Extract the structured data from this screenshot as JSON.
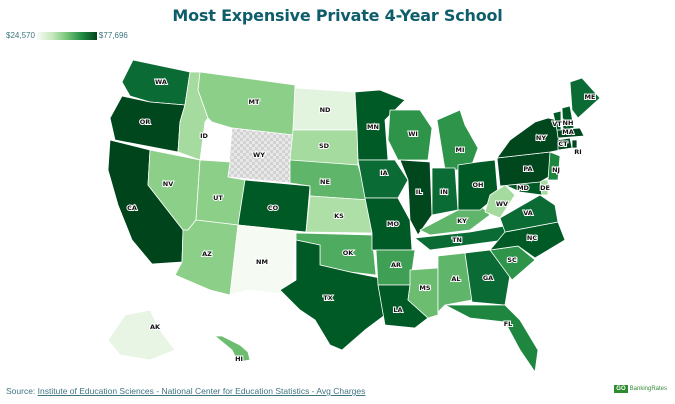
{
  "title": "Most Expensive Private 4-Year School",
  "legend": {
    "min_label": "$24,570",
    "max_label": "$77,696",
    "min_color": "#f7fcf5",
    "max_color": "#00441b"
  },
  "source": {
    "prefix": "Source: ",
    "link_text": "Institute of Education Sciences - National Center for Education Statistics - Avg Charges"
  },
  "brand": {
    "go": "GO",
    "name": "BankingRates"
  },
  "no_data_pattern": "checkered",
  "states": [
    {
      "abbr": "WA",
      "shade": "#0b6b34"
    },
    {
      "abbr": "OR",
      "shade": "#00471d"
    },
    {
      "abbr": "CA",
      "shade": "#00441b"
    },
    {
      "abbr": "ID",
      "shade": "#a6dba0"
    },
    {
      "abbr": "NV",
      "shade": "#8ccf88"
    },
    {
      "abbr": "MT",
      "shade": "#8ccf88"
    },
    {
      "abbr": "WY",
      "shade": "no-data"
    },
    {
      "abbr": "UT",
      "shade": "#8ccf88"
    },
    {
      "abbr": "AZ",
      "shade": "#8ccf88"
    },
    {
      "abbr": "CO",
      "shade": "#005a25"
    },
    {
      "abbr": "NM",
      "shade": "#f5fbf3"
    },
    {
      "abbr": "ND",
      "shade": "#e2f3de"
    },
    {
      "abbr": "SD",
      "shade": "#a6dba0"
    },
    {
      "abbr": "NE",
      "shade": "#5fb56a"
    },
    {
      "abbr": "KS",
      "shade": "#addfa6"
    },
    {
      "abbr": "OK",
      "shade": "#4fab5f"
    },
    {
      "abbr": "TX",
      "shade": "#005a25"
    },
    {
      "abbr": "MN",
      "shade": "#005a25"
    },
    {
      "abbr": "IA",
      "shade": "#0b6b34"
    },
    {
      "abbr": "MO",
      "shade": "#005a25"
    },
    {
      "abbr": "AR",
      "shade": "#3f9f55"
    },
    {
      "abbr": "LA",
      "shade": "#005a25"
    },
    {
      "abbr": "WI",
      "shade": "#2e944a"
    },
    {
      "abbr": "IL",
      "shade": "#00471d"
    },
    {
      "abbr": "MS",
      "shade": "#6dbd70"
    },
    {
      "abbr": "MI",
      "shade": "#2e944a"
    },
    {
      "abbr": "IN",
      "shade": "#0b6b34"
    },
    {
      "abbr": "KY",
      "shade": "#5fb56a"
    },
    {
      "abbr": "TN",
      "shade": "#0b6b34"
    },
    {
      "abbr": "AL",
      "shade": "#5fb56a"
    },
    {
      "abbr": "OH",
      "shade": "#005a25"
    },
    {
      "abbr": "GA",
      "shade": "#0b6b34"
    },
    {
      "abbr": "FL",
      "shade": "#1f8640"
    },
    {
      "abbr": "SC",
      "shade": "#2e944a"
    },
    {
      "abbr": "NC",
      "shade": "#005a25"
    },
    {
      "abbr": "VA",
      "shade": "#0b6b34"
    },
    {
      "abbr": "WV",
      "shade": "#a6dba0"
    },
    {
      "abbr": "MD",
      "shade": "#005a25"
    },
    {
      "abbr": "DE",
      "shade": "#a6dba0"
    },
    {
      "abbr": "PA",
      "shade": "#00471d"
    },
    {
      "abbr": "NJ",
      "shade": "#1f8640"
    },
    {
      "abbr": "NY",
      "shade": "#00471d"
    },
    {
      "abbr": "CT",
      "shade": "#00471d"
    },
    {
      "abbr": "RI",
      "shade": "#00471d"
    },
    {
      "abbr": "MA",
      "shade": "#00471d"
    },
    {
      "abbr": "VT",
      "shade": "#005a25"
    },
    {
      "abbr": "NH",
      "shade": "#005a25"
    },
    {
      "abbr": "ME",
      "shade": "#0b6b34"
    },
    {
      "abbr": "AK",
      "shade": "#e8f5e4"
    },
    {
      "abbr": "HI",
      "shade": "#6dbd70"
    }
  ]
}
